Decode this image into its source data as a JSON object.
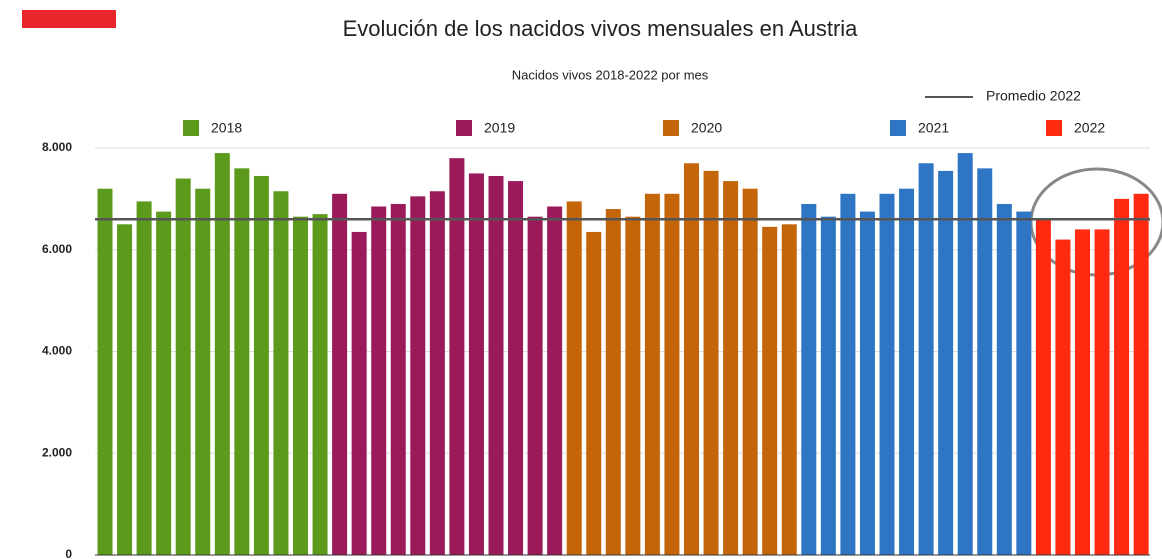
{
  "chart_data": {
    "type": "bar",
    "title": "Evolución de los nacidos vivos mensuales en Austria",
    "subtitle": "Nacidos vivos 2018-2022 por mes",
    "series": [
      {
        "name": "2018",
        "color": "#5b9a1b",
        "values": [
          7200,
          6500,
          6950,
          6750,
          7400,
          7200,
          7900,
          7600,
          7450,
          7150,
          6650,
          6700
        ]
      },
      {
        "name": "2019",
        "color": "#9b1b5a",
        "values": [
          7100,
          6350,
          6850,
          6900,
          7050,
          7150,
          7800,
          7500,
          7450,
          7350,
          6650,
          6850
        ]
      },
      {
        "name": "2020",
        "color": "#c4650a",
        "values": [
          6950,
          6350,
          6800,
          6650,
          7100,
          7100,
          7700,
          7550,
          7350,
          7200,
          6450,
          6500
        ]
      },
      {
        "name": "2021",
        "color": "#2e75c4",
        "values": [
          6900,
          6650,
          7100,
          6750,
          7100,
          7200,
          7700,
          7550,
          7900,
          7600,
          6900,
          6750
        ]
      },
      {
        "name": "2022",
        "color": "#ff2a10",
        "values": [
          6600,
          6200,
          6400,
          6400,
          7000,
          7100
        ]
      }
    ],
    "average": {
      "name": "Promedio 2022",
      "value": 6600,
      "color": "#555555"
    },
    "ylim": [
      0,
      8000
    ],
    "yticks": [
      0,
      {
        "value": 2000,
        "label": "2.000"
      },
      {
        "value": 4000,
        "label": "4.000"
      },
      {
        "value": 6000,
        "label": "6.000"
      },
      {
        "value": 8000,
        "label": "8.000"
      }
    ],
    "grid": true
  }
}
